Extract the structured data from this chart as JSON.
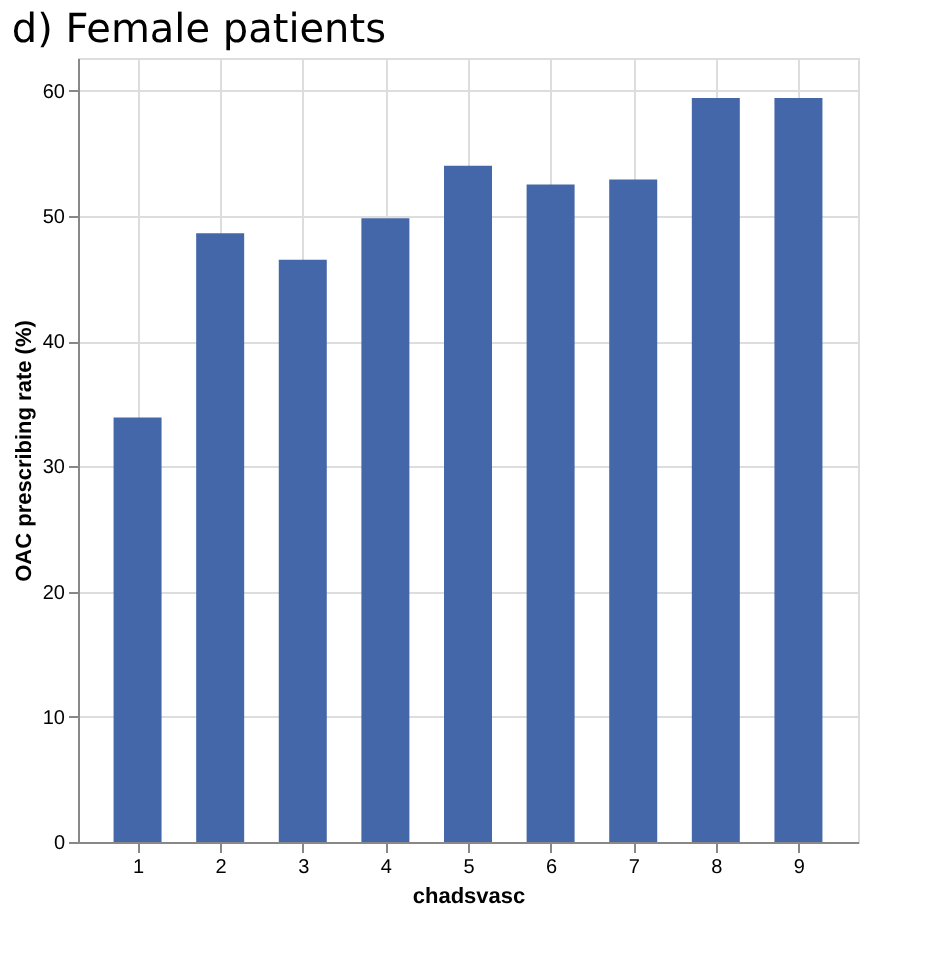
{
  "chart_data": {
    "type": "bar",
    "title": "d) Female patients",
    "xlabel": "chadsvasc",
    "ylabel": "OAC prescribing rate (%)",
    "categories": [
      "1",
      "2",
      "3",
      "4",
      "5",
      "6",
      "7",
      "8",
      "9"
    ],
    "values": [
      33.9,
      48.6,
      46.5,
      49.8,
      54.0,
      52.5,
      52.9,
      59.4,
      59.4
    ],
    "color": "#4467a9",
    "ylim": [
      0,
      62.6
    ],
    "yticks": [
      0,
      10,
      20,
      30,
      40,
      50,
      60
    ],
    "grid": true
  }
}
